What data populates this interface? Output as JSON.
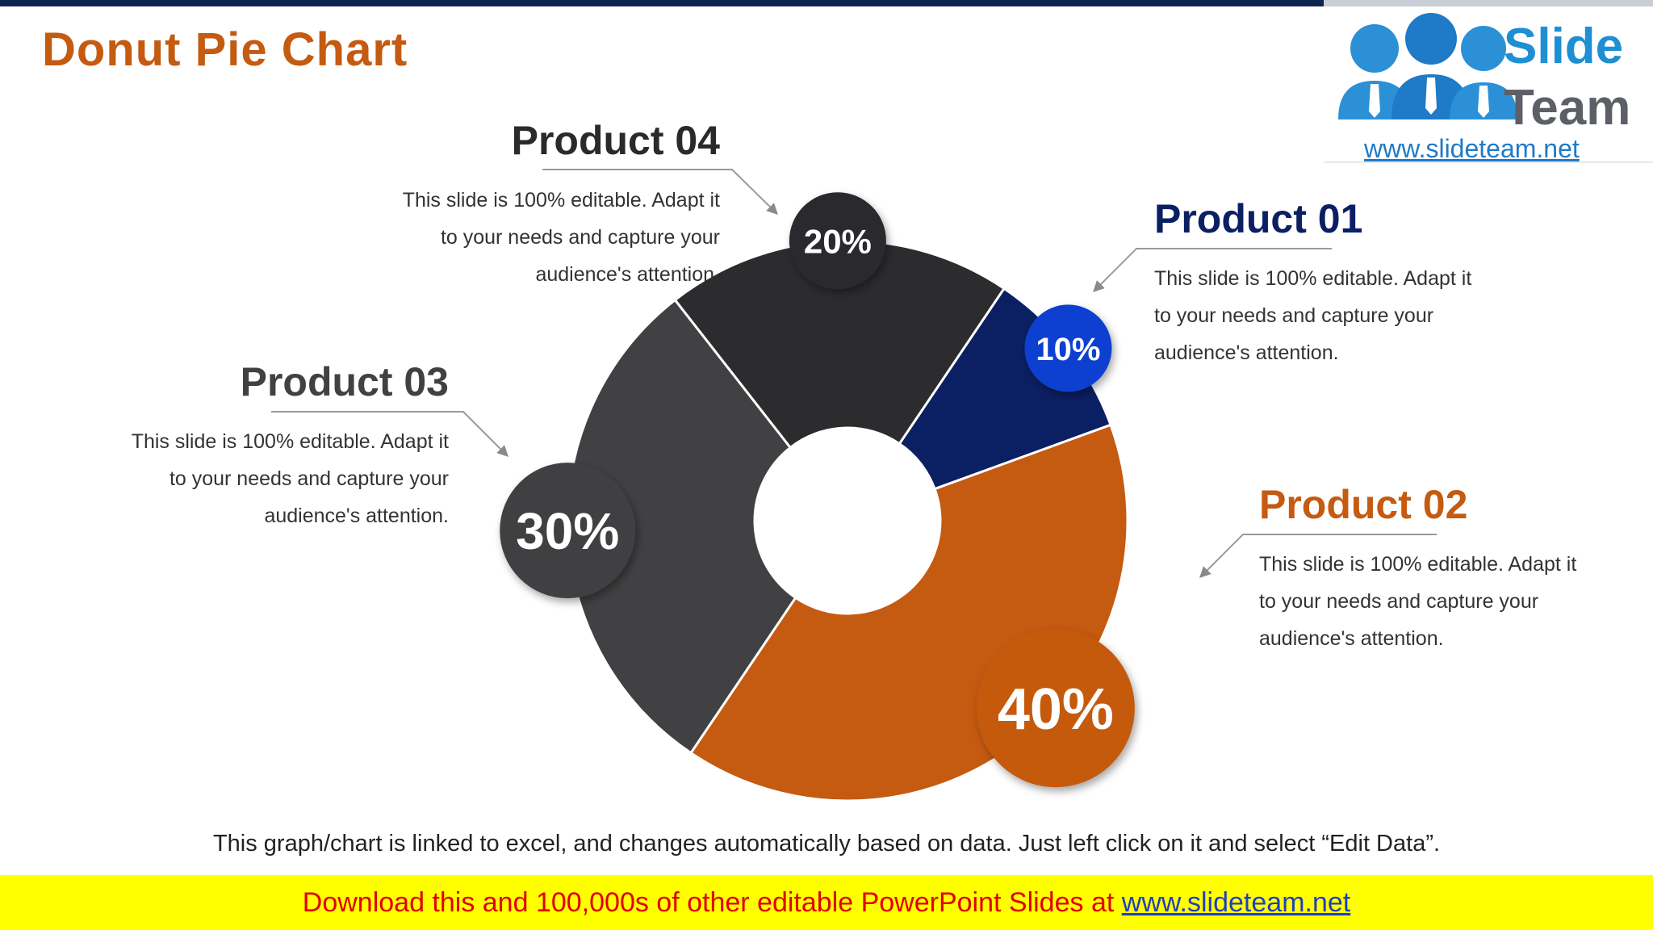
{
  "slide": {
    "title": "Donut Pie Chart",
    "footnote": "This graph/chart is linked to excel, and changes automatically based on data. Just left click on it and select “Edit Data”.",
    "banner_text": "Download this and 100,000s of other editable PowerPoint Slides at ",
    "banner_link": "www.slideteam.net"
  },
  "logo": {
    "word1": "Slide",
    "word2": "Team",
    "url": "www.slideteam.net"
  },
  "colors": {
    "product_01": "#0b1f63",
    "product_02": "#c55a11",
    "product_03": "#414042",
    "product_04": "#2c2b2d",
    "badge_01": "#0a3fd1",
    "title": "#c55a11"
  },
  "products": [
    {
      "name": "Product 01",
      "desc1": "This slide is 100% editable. Adapt it",
      "desc2": "to your needs and capture your",
      "desc3": "audience's attention."
    },
    {
      "name": "Product 02",
      "desc1": "This slide is 100% editable. Adapt it",
      "desc2": "to your needs and capture your",
      "desc3": "audience's attention."
    },
    {
      "name": "Product 03",
      "desc1": "This slide is 100% editable. Adapt it",
      "desc2": "to your needs and capture your",
      "desc3": "audience's attention."
    },
    {
      "name": "Product 04",
      "desc1": "This slide is 100% editable. Adapt it",
      "desc2": "to your needs and capture your",
      "desc3": "audience's attention."
    }
  ],
  "chart_data": {
    "type": "pie",
    "categories": [
      "Product 01",
      "Product 02",
      "Product 03",
      "Product 04"
    ],
    "values": [
      10,
      40,
      30,
      20
    ],
    "labels": [
      "10%",
      "40%",
      "30%",
      "20%"
    ],
    "title": "Donut Pie Chart"
  }
}
